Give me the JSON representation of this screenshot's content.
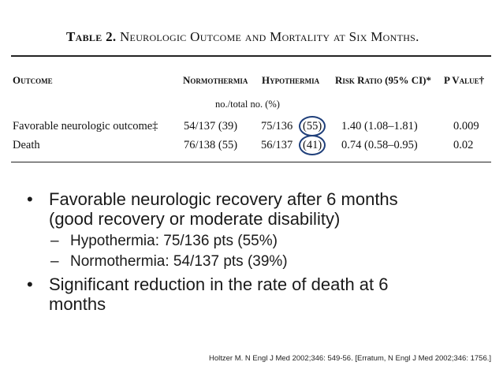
{
  "table": {
    "title_label": "Table 2.",
    "title_text": "Neurologic Outcome and Mortality at Six Months.",
    "headers": {
      "outcome": "Outcome",
      "normothermia": "Normothermia",
      "hypothermia": "Hypothermia",
      "risk_ratio": "Risk Ratio (95% CI)*",
      "p_value": "P Value†"
    },
    "subheader": "no./total no. (%)",
    "rows": [
      {
        "outcome": "Favorable neurologic outcome‡",
        "normothermia": "54/137 (39)",
        "hypothermia_count": "75/136",
        "hypothermia_pct": "(55)",
        "risk_ratio": "1.40 (1.08–1.81)",
        "p_value": "0.009"
      },
      {
        "outcome": "Death",
        "normothermia": "76/138 (55)",
        "hypothermia_count": "56/137",
        "hypothermia_pct": "(41)",
        "risk_ratio": "0.74 (0.58–0.95)",
        "p_value": "0.02"
      }
    ]
  },
  "bullets": {
    "b1_line1": "Favorable neurologic recovery after 6 months",
    "b1_line2": "(good recovery or moderate disability)",
    "sub1": "Hypothermia: 75/136 pts (55%)",
    "sub2": "Normothermia: 54/137 pts (39%)",
    "b2_line1": "Significant reduction in the rate of death at 6",
    "b2_line2": "months",
    "bullet_glyph": "•",
    "dash_glyph": "–"
  },
  "citation": "Holtzer M. N Engl J Med 2002;346: 549-56. [Erratum, N Engl J Med 2002;346: 1756.]",
  "colors": {
    "circle": "#1f3f7a",
    "text": "#1a1a1a"
  }
}
